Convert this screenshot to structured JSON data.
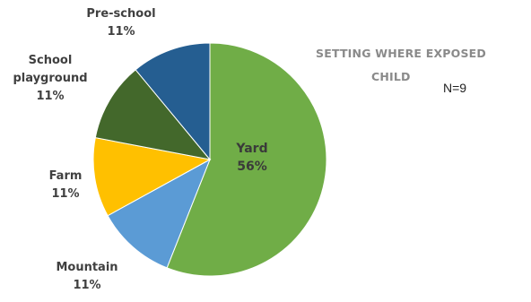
{
  "chart_data": {
    "type": "pie",
    "title": "SETTING WHERE EXPOSED CHILD",
    "title_lines": [
      "SETTING WHERE EXPOSED",
      "CHILD"
    ],
    "annotation": "N=9",
    "slices": [
      {
        "label": "Yard",
        "value": 56,
        "value_text": "56%",
        "color": "#70ad47"
      },
      {
        "label": "Mountain",
        "value": 11,
        "value_text": "11%",
        "color": "#5b9bd5"
      },
      {
        "label": "Farm",
        "value": 11,
        "value_text": "11%",
        "color": "#ffc000"
      },
      {
        "label": "School playground",
        "label_lines": [
          "School",
          "playground"
        ],
        "value": 11,
        "value_text": "11%",
        "color": "#43682b"
      },
      {
        "label": "Pre-school",
        "value": 11,
        "value_text": "11%",
        "color": "#255e91"
      }
    ],
    "start_angle": "12 o'clock",
    "direction": "clockwise",
    "legend": "none"
  }
}
